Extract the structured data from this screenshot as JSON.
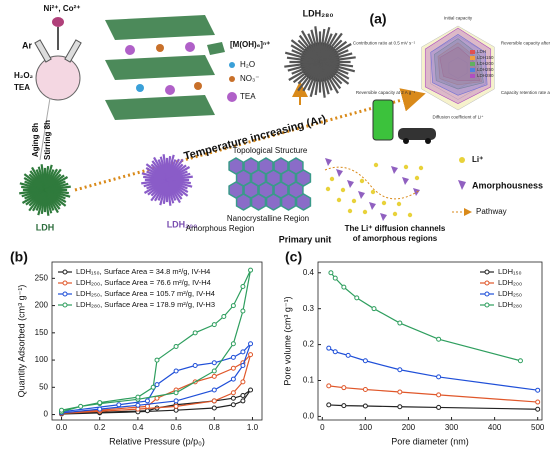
{
  "diagram": {
    "panel_label": "(a)",
    "reagents": "Ni²⁺, Co²⁺",
    "gas": "Ar",
    "reactants": [
      "H₂O₂",
      "TEA"
    ],
    "steps": [
      "Aging 8h",
      "Stirring 8h"
    ],
    "products": [
      "LDH",
      "LDH₂₀₀",
      "LDH₂₈₀"
    ],
    "legend": [
      "[M(OH)₆]ⁿ⁺",
      "H₂O",
      "NO₃⁻",
      "TEA"
    ],
    "arrow": "Temperature increasing (Ar)",
    "structure": {
      "title": "Topological Structure",
      "regions": [
        "Nanocrystalline Region",
        "Amorphous Region"
      ],
      "caption": "Primary unit"
    },
    "diffusion": {
      "ion": "Li⁺",
      "labels": [
        "Amorphousness",
        "Pathway"
      ],
      "caption": [
        "The Li⁺ diffusion channels",
        "of amorphous regions"
      ]
    },
    "radar": {
      "axes": [
        "Initial capacity",
        "Reversible capacity after 300 cycles",
        "Capacity retention rate after 300 cycles",
        "Diffusion coefficient of Li⁺",
        "Reversible capacity at 2 A g⁻¹",
        "Contribution ratio at 0.5 mV s⁻¹"
      ],
      "legend": [
        "LDH",
        "LDH150",
        "LDH200",
        "LDH250",
        "LDH280"
      ]
    }
  },
  "chart_data": [
    {
      "type": "line",
      "panel_label": "(b)",
      "x_label": "Relative Pressure (p/p₀)",
      "y_label": "Quantity Adsorbed (cm³ g⁻¹)",
      "xlim": [
        -0.05,
        1.05
      ],
      "ylim": [
        -10,
        280
      ],
      "xticks": [
        {
          "value": 0,
          "label": "0.0"
        },
        0.2,
        0.4,
        0.6,
        0.8,
        {
          "value": 1,
          "label": "1.0"
        }
      ],
      "yticks": [
        0,
        50,
        100,
        150,
        200,
        250
      ],
      "legend": "upper left",
      "series": [
        {
          "name": "LDH₁₅₀, Surface Area = 34.8 m²/g, IV-H4",
          "color": "#222222",
          "x": [
            0,
            0.2,
            0.4,
            0.6,
            0.8,
            0.9,
            0.95,
            0.99,
            0.95,
            0.9,
            0.8,
            0.6,
            0.5,
            0.45,
            0.2,
            0
          ],
          "values": [
            1,
            3,
            5,
            8,
            12,
            18,
            25,
            45,
            35,
            30,
            25,
            18,
            12,
            7,
            4,
            2
          ]
        },
        {
          "name": "LDH₂₀₀, Surface Area = 76.6 m²/g, IV-H4",
          "color": "#e0572a",
          "x": [
            0,
            0.2,
            0.4,
            0.6,
            0.8,
            0.9,
            0.95,
            0.99,
            0.95,
            0.9,
            0.8,
            0.7,
            0.6,
            0.5,
            0.45,
            0.2,
            0
          ],
          "values": [
            2,
            6,
            10,
            15,
            25,
            40,
            60,
            110,
            95,
            85,
            70,
            60,
            45,
            30,
            15,
            8,
            3
          ]
        },
        {
          "name": "LDH₂₅₀, Surface Area = 105.7 m²/g, IV-H4",
          "color": "#1f4fd8",
          "x": [
            0,
            0.2,
            0.4,
            0.6,
            0.8,
            0.9,
            0.95,
            0.99,
            0.95,
            0.9,
            0.8,
            0.7,
            0.6,
            0.5,
            0.45,
            0.3,
            0
          ],
          "values": [
            3,
            10,
            17,
            25,
            45,
            65,
            90,
            130,
            115,
            105,
            95,
            90,
            80,
            55,
            25,
            18,
            5
          ]
        },
        {
          "name": "LDH₂₈₀, Surface Area = 178.9 m²/g, IV-H3",
          "color": "#2e9e5e",
          "x": [
            0,
            0.1,
            0.2,
            0.4,
            0.6,
            0.8,
            0.9,
            0.95,
            0.99,
            0.95,
            0.9,
            0.85,
            0.8,
            0.7,
            0.6,
            0.5,
            0.48,
            0.4,
            0.2,
            0
          ],
          "values": [
            5,
            15,
            20,
            28,
            40,
            80,
            130,
            190,
            265,
            235,
            200,
            180,
            165,
            150,
            125,
            100,
            50,
            32,
            22,
            8
          ]
        }
      ]
    },
    {
      "type": "line",
      "panel_label": "(c)",
      "x_label": "Pore diameter (nm)",
      "y_label": "Pore volume (cm³ g⁻¹)",
      "xlim": [
        -10,
        510
      ],
      "ylim": [
        -0.01,
        0.43
      ],
      "xticks": [
        0,
        100,
        200,
        300,
        400,
        500
      ],
      "yticks": [
        {
          "value": 0,
          "label": "0.0"
        },
        0.1,
        0.2,
        0.3,
        0.4
      ],
      "legend": "upper right",
      "series": [
        {
          "name": "LDH₁₅₀",
          "color": "#222222",
          "x": [
            15,
            50,
            100,
            180,
            270,
            500
          ],
          "values": [
            0.032,
            0.03,
            0.029,
            0.027,
            0.025,
            0.02
          ]
        },
        {
          "name": "LDH₂₀₀",
          "color": "#e0572a",
          "x": [
            15,
            50,
            100,
            180,
            270,
            500
          ],
          "values": [
            0.085,
            0.08,
            0.075,
            0.068,
            0.06,
            0.04
          ]
        },
        {
          "name": "LDH₂₅₀",
          "color": "#1f4fd8",
          "x": [
            15,
            30,
            60,
            100,
            180,
            270,
            500
          ],
          "values": [
            0.19,
            0.18,
            0.17,
            0.155,
            0.13,
            0.11,
            0.073
          ]
        },
        {
          "name": "LDH₂₈₀",
          "color": "#2e9e5e",
          "x": [
            20,
            30,
            50,
            80,
            120,
            180,
            270,
            460
          ],
          "values": [
            0.4,
            0.385,
            0.36,
            0.33,
            0.3,
            0.26,
            0.215,
            0.155
          ]
        }
      ]
    }
  ]
}
